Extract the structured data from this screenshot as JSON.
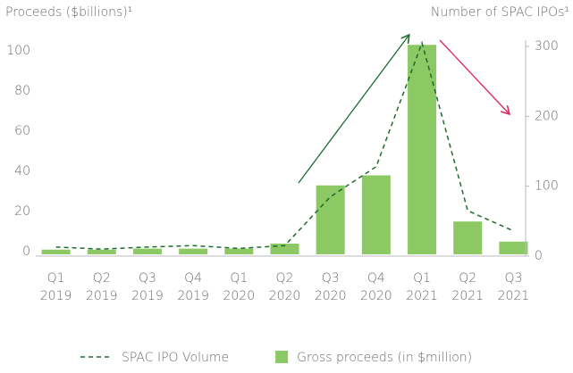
{
  "chart_data": {
    "type": "bar",
    "y_label": "Proceeds ($billions)¹",
    "y2_label": "Number of SPAC IPOs¹",
    "categories": [
      "Q1 2019",
      "Q2 2019",
      "Q3 2019",
      "Q4 2019",
      "Q1 2020",
      "Q2 2020",
      "Q3 2020",
      "Q4 2020",
      "Q1 2021",
      "Q2 2021",
      "Q3 2021"
    ],
    "series": [
      {
        "name": "SPAC IPO Volume",
        "type": "line",
        "axis": "y2",
        "color": "#1e6b2e",
        "values": [
          13,
          10,
          13,
          15,
          11,
          15,
          85,
          128,
          305,
          65,
          36
        ]
      },
      {
        "name": "Gross proceeds (in $million)",
        "type": "bar",
        "color": "#8cc863",
        "values": [
          1,
          1,
          1.5,
          1.5,
          1.5,
          4,
          33,
          38,
          103,
          15,
          5
        ]
      }
    ],
    "ylim": [
      0,
      100
    ],
    "yticks": [
      0,
      20,
      40,
      60,
      80,
      100
    ],
    "y2lim": [
      0,
      300
    ],
    "y2ticks": [
      0,
      100,
      200,
      300
    ]
  }
}
